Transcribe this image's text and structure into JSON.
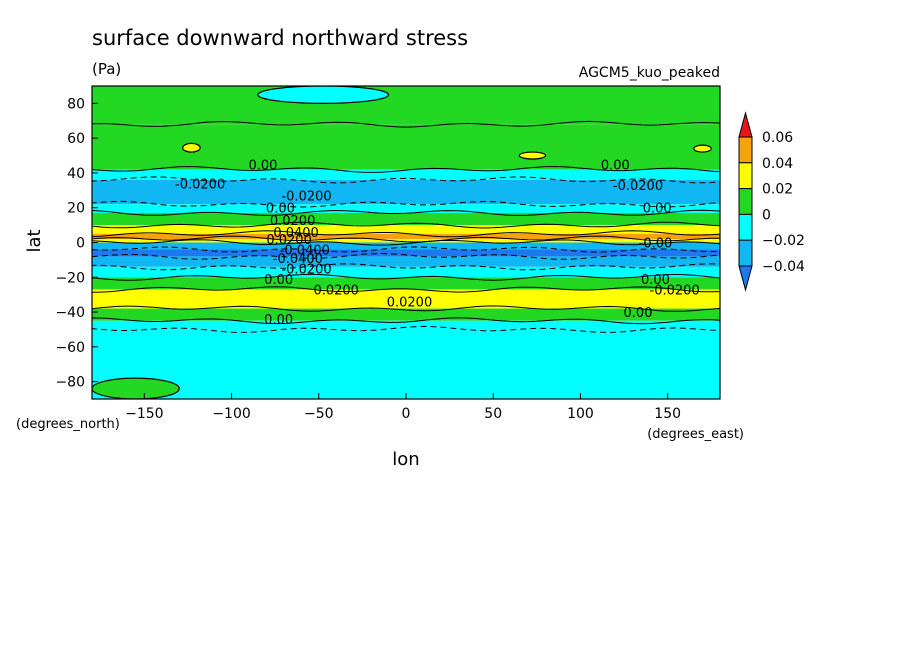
{
  "chart_data": {
    "type": "heatmap",
    "title": "surface downward northward stress",
    "units": "(Pa)",
    "dataset": "AGCM5_kuo_peaked",
    "xlabel": "lon",
    "ylabel": "lat",
    "x_units": "(degrees_east)",
    "y_units": "(degrees_north)",
    "xlim": [
      -180,
      180
    ],
    "ylim": [
      -90,
      90
    ],
    "x_ticks": [
      -150,
      -100,
      -50,
      0,
      50,
      100,
      150
    ],
    "x_tick_labels": [
      "−150",
      "−100",
      "−50",
      "0",
      "50",
      "100",
      "150"
    ],
    "y_ticks": [
      80,
      60,
      40,
      20,
      0,
      -20,
      -40,
      -60,
      -80
    ],
    "y_tick_labels": [
      "80",
      "60",
      "40",
      "20",
      "0",
      "−20",
      "−40",
      "−60",
      "−80"
    ],
    "colorbar": {
      "levels": [
        0.06,
        0.04,
        0.02,
        0,
        -0.02,
        -0.04
      ],
      "labels": [
        "0.06",
        "0.04",
        "0.02",
        "0",
        "−0.02",
        "−0.04"
      ],
      "bins": [
        {
          "range": [
            0.06,
            1
          ],
          "color": "#e8161b"
        },
        {
          "range": [
            0.04,
            0.06
          ],
          "color": "#f5a20e"
        },
        {
          "range": [
            0.02,
            0.04
          ],
          "color": "#ffff00"
        },
        {
          "range": [
            0,
            0.02
          ],
          "color": "#23d823"
        },
        {
          "range": [
            -0.02,
            0
          ],
          "color": "#00ffff"
        },
        {
          "range": [
            -0.04,
            -0.02
          ],
          "color": "#11b7f3"
        },
        {
          "range": [
            -1,
            -0.04
          ],
          "color": "#1e78f0"
        }
      ]
    },
    "zonal_bands": [
      {
        "lat": [
          68,
          90
        ],
        "value": 0.01
      },
      {
        "lat": [
          42,
          68
        ],
        "value": 0.01
      },
      {
        "lat": [
          36,
          42
        ],
        "value": -0.01
      },
      {
        "lat": [
          22,
          36
        ],
        "value": -0.025
      },
      {
        "lat": [
          17,
          22
        ],
        "value": -0.01
      },
      {
        "lat": [
          10,
          17
        ],
        "value": 0.01
      },
      {
        "lat": [
          5,
          10
        ],
        "value": 0.03
      },
      {
        "lat": [
          2,
          5
        ],
        "value": 0.05
      },
      {
        "lat": [
          0,
          2
        ],
        "value": 0.03
      },
      {
        "lat": [
          -4,
          0
        ],
        "value": -0.03
      },
      {
        "lat": [
          -8,
          -4
        ],
        "value": -0.05
      },
      {
        "lat": [
          -14,
          -8
        ],
        "value": -0.03
      },
      {
        "lat": [
          -20,
          -14
        ],
        "value": -0.01
      },
      {
        "lat": [
          -27,
          -20
        ],
        "value": 0.01
      },
      {
        "lat": [
          -38,
          -27
        ],
        "value": 0.03
      },
      {
        "lat": [
          -45,
          -38
        ],
        "value": 0.01
      },
      {
        "lat": [
          -50,
          -45
        ],
        "value": -0.01
      },
      {
        "lat": [
          -90,
          -50
        ],
        "value": -0.01
      }
    ],
    "features": [
      {
        "kind": "cyan-patch",
        "lon": [
          -85,
          -10
        ],
        "lat": [
          80,
          90
        ],
        "value": -0.01
      },
      {
        "kind": "yellow-spot",
        "lon": [
          -128,
          -118
        ],
        "lat": [
          52,
          57
        ],
        "value": 0.03
      },
      {
        "kind": "yellow-spot",
        "lon": [
          65,
          80
        ],
        "lat": [
          48,
          52
        ],
        "value": 0.03
      },
      {
        "kind": "yellow-spot",
        "lon": [
          165,
          175
        ],
        "lat": [
          52,
          56
        ],
        "value": 0.03
      },
      {
        "kind": "green-patch",
        "lon": [
          -180,
          -130
        ],
        "lat": [
          -90,
          -78
        ],
        "value": 0.01
      }
    ],
    "contour_labels": [
      {
        "text": "0.00",
        "lon": -82,
        "lat": 45
      },
      {
        "text": "0.00",
        "lon": 120,
        "lat": 45
      },
      {
        "text": "-0.0200",
        "lon": -118,
        "lat": 34
      },
      {
        "text": "-0.0200",
        "lon": -57,
        "lat": 27
      },
      {
        "text": "-0.0200",
        "lon": 133,
        "lat": 33
      },
      {
        "text": "0.00",
        "lon": -72,
        "lat": 20
      },
      {
        "text": "0.00",
        "lon": 144,
        "lat": 20
      },
      {
        "text": "0.0200",
        "lon": -65,
        "lat": 13
      },
      {
        "text": "0.0400",
        "lon": -63,
        "lat": 6
      },
      {
        "text": "0.0200",
        "lon": -67,
        "lat": 2
      },
      {
        "text": "-0.0400",
        "lon": -58,
        "lat": -4
      },
      {
        "text": "-0.0400",
        "lon": -62,
        "lat": -9
      },
      {
        "text": "-0.00",
        "lon": 143,
        "lat": 0
      },
      {
        "text": "-0.0200",
        "lon": -57,
        "lat": -15
      },
      {
        "text": "0.00",
        "lon": -73,
        "lat": -21
      },
      {
        "text": "0.00",
        "lon": 143,
        "lat": -21
      },
      {
        "text": "0.0200",
        "lon": -40,
        "lat": -27
      },
      {
        "text": "-0.0200",
        "lon": 154,
        "lat": -27
      },
      {
        "text": "0.0200",
        "lon": 2,
        "lat": -34
      },
      {
        "text": "0.00",
        "lon": 133,
        "lat": -40
      },
      {
        "text": "0.00",
        "lon": -73,
        "lat": -44
      }
    ]
  }
}
